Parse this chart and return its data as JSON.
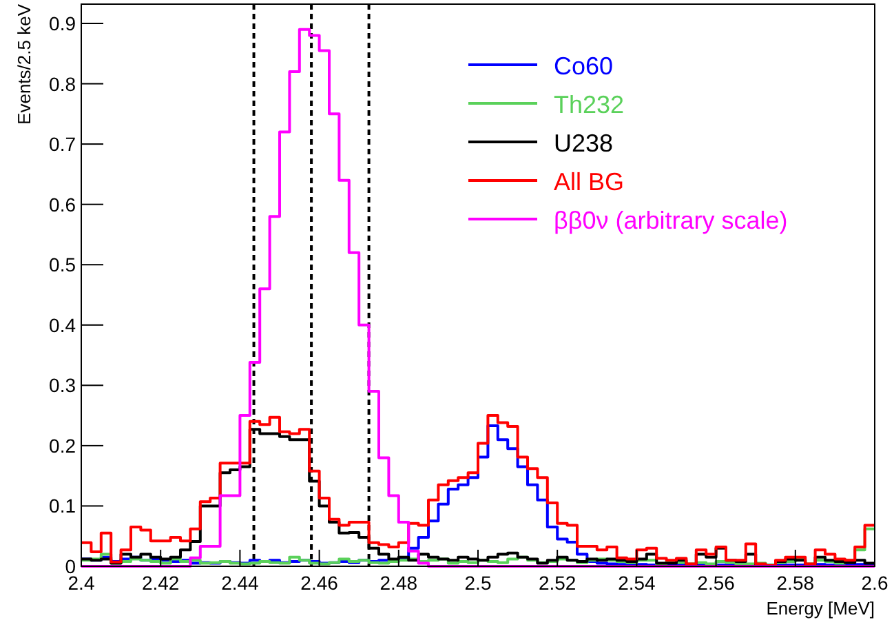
{
  "chart_data": {
    "type": "histogram",
    "xlabel": "Energy [MeV]",
    "ylabel": "Events/2.5 keV",
    "bins": [
      2.4,
      2.4025,
      2.405,
      2.4075,
      2.41,
      2.4125,
      2.415,
      2.4175,
      2.42,
      2.4225,
      2.425,
      2.4275,
      2.43,
      2.4325,
      2.435,
      2.4375,
      2.44,
      2.4425,
      2.445,
      2.4475,
      2.45,
      2.4525,
      2.455,
      2.4575,
      2.46,
      2.4625,
      2.465,
      2.4675,
      2.47,
      2.4725,
      2.475,
      2.4775,
      2.48,
      2.4825,
      2.485,
      2.4875,
      2.49,
      2.4925,
      2.495,
      2.4975,
      2.5,
      2.5025,
      2.505,
      2.5075,
      2.51,
      2.5125,
      2.515,
      2.5175,
      2.52,
      2.5225,
      2.525,
      2.5275,
      2.53,
      2.5325,
      2.535,
      2.5375,
      2.54,
      2.5425,
      2.545,
      2.5475,
      2.55,
      2.5525,
      2.555,
      2.5575,
      2.56,
      2.5625,
      2.565,
      2.5675,
      2.57,
      2.5725,
      2.575,
      2.5775,
      2.58,
      2.5825,
      2.585,
      2.5875,
      2.59,
      2.5925,
      2.595,
      2.5975,
      2.6
    ],
    "series": [
      {
        "name": "Co60",
        "color": "#0000ff",
        "values": [
          0.012,
          0.01,
          0.015,
          0.008,
          0.012,
          0.015,
          0.01,
          0.012,
          0.01,
          0.008,
          0.01,
          0.005,
          0.006,
          0.005,
          0.008,
          0.006,
          0.005,
          0.01,
          0.008,
          0.01,
          0.006,
          0.008,
          0.01,
          0.008,
          0.005,
          0.006,
          0.008,
          0.006,
          0.01,
          0.008,
          0.01,
          0.008,
          0.012,
          0.03,
          0.048,
          0.075,
          0.103,
          0.128,
          0.135,
          0.147,
          0.181,
          0.233,
          0.21,
          0.195,
          0.165,
          0.135,
          0.11,
          0.065,
          0.045,
          0.04,
          0.02,
          0.008,
          0.005,
          0.004,
          0.003,
          0.003,
          0.003,
          0.002,
          0.003,
          0.002,
          0.003,
          0.002,
          0.002,
          0.003,
          0.002,
          0.002,
          0.003,
          0.002,
          0.002,
          0.002,
          0.003,
          0.002,
          0.002,
          0.002,
          0.003,
          0.002,
          0.002,
          0.002,
          0.003,
          0.002
        ]
      },
      {
        "name": "Th232",
        "color": "#5ad15a",
        "values": [
          0.01,
          0.012,
          0.02,
          0.005,
          0.008,
          0.012,
          0.01,
          0.008,
          0.005,
          0.012,
          0.008,
          0.01,
          0.005,
          0.006,
          0.008,
          0.005,
          0.004,
          0.005,
          0.008,
          0.006,
          0.005,
          0.015,
          0.01,
          0.005,
          0.004,
          0.006,
          0.012,
          0.008,
          0.01,
          0.006,
          0.005,
          0.008,
          0.01,
          0.012,
          0.008,
          0.01,
          0.012,
          0.005,
          0.008,
          0.006,
          0.01,
          0.008,
          0.006,
          0.012,
          0.015,
          0.01,
          0.006,
          0.008,
          0.012,
          0.01,
          0.006,
          0.01,
          0.012,
          0.01,
          0.008,
          0.006,
          0.01,
          0.01,
          0.004,
          0.008,
          0.006,
          0.004,
          0.006,
          0.004,
          0.008,
          0.006,
          0.003,
          0.004,
          0.005,
          0.002,
          0.006,
          0.008,
          0.012,
          0.004,
          0.01,
          0.008,
          0.005,
          0.01,
          0.027,
          0.062
        ]
      },
      {
        "name": "U238",
        "color": "#000000",
        "values": [
          0.012,
          0.01,
          0.012,
          0.005,
          0.02,
          0.015,
          0.02,
          0.015,
          0.012,
          0.015,
          0.027,
          0.041,
          0.1,
          0.1,
          0.155,
          0.16,
          0.165,
          0.227,
          0.22,
          0.22,
          0.215,
          0.21,
          0.21,
          0.141,
          0.1,
          0.073,
          0.055,
          0.056,
          0.048,
          0.03,
          0.02,
          0.012,
          0.015,
          0.01,
          0.02,
          0.015,
          0.012,
          0.01,
          0.015,
          0.012,
          0.01,
          0.015,
          0.02,
          0.022,
          0.015,
          0.012,
          0.005,
          0.01,
          0.015,
          0.01,
          0.008,
          0.012,
          0.01,
          0.012,
          0.01,
          0.008,
          0.012,
          0.02,
          0.005,
          0.005,
          0.01,
          0.003,
          0.02,
          0.015,
          0.03,
          0.01,
          0.008,
          0.02,
          0.002,
          0.001,
          0.008,
          0.012,
          0.01,
          0.003,
          0.015,
          0.01,
          0.008,
          0.006,
          0.01,
          0.005
        ]
      },
      {
        "name": "All BG",
        "color": "#ff0000",
        "values": [
          0.039,
          0.024,
          0.055,
          0.007,
          0.027,
          0.065,
          0.06,
          0.042,
          0.042,
          0.048,
          0.042,
          0.062,
          0.107,
          0.113,
          0.171,
          0.171,
          0.171,
          0.24,
          0.235,
          0.247,
          0.223,
          0.22,
          0.227,
          0.158,
          0.113,
          0.078,
          0.068,
          0.073,
          0.073,
          0.039,
          0.036,
          0.032,
          0.039,
          0.071,
          0.068,
          0.11,
          0.135,
          0.142,
          0.147,
          0.155,
          0.204,
          0.25,
          0.238,
          0.232,
          0.181,
          0.162,
          0.147,
          0.105,
          0.071,
          0.068,
          0.033,
          0.033,
          0.027,
          0.032,
          0.014,
          0.012,
          0.027,
          0.03,
          0.013,
          0.01,
          0.013,
          0.004,
          0.027,
          0.02,
          0.032,
          0.01,
          0.01,
          0.037,
          0.004,
          0.001,
          0.01,
          0.015,
          0.015,
          0.004,
          0.027,
          0.02,
          0.012,
          0.01,
          0.032,
          0.068
        ]
      },
      {
        "name": "ββ0ν (arbitrary scale)",
        "color": "#ff00ff",
        "values": [
          0,
          0,
          0,
          0,
          0,
          0,
          0,
          0,
          0,
          0,
          0,
          0.014,
          0.033,
          0.033,
          0.117,
          0.117,
          0.25,
          0.338,
          0.46,
          0.58,
          0.72,
          0.82,
          0.89,
          0.88,
          0.855,
          0.75,
          0.64,
          0.52,
          0.4,
          0.29,
          0.18,
          0.117,
          0.073,
          0.025,
          0.005,
          0,
          0,
          0,
          0,
          0,
          0,
          0,
          0,
          0,
          0,
          0,
          0,
          0,
          0,
          0,
          0,
          0,
          0,
          0,
          0,
          0,
          0,
          0,
          0,
          0,
          0,
          0,
          0,
          0,
          0,
          0,
          0,
          0,
          0,
          0,
          0,
          0,
          0,
          0,
          0,
          0,
          0,
          0,
          0,
          0
        ]
      }
    ],
    "xlim": [
      2.4,
      2.6
    ],
    "ylim": [
      0,
      0.932
    ],
    "xticks": [
      {
        "value": 2.4,
        "label": "2.4"
      },
      2.42,
      2.44,
      2.46,
      2.48,
      {
        "value": 2.5,
        "label": "2.5"
      },
      2.52,
      2.54,
      2.56,
      2.58,
      {
        "value": 2.6,
        "label": "2.6"
      }
    ],
    "yticks": [
      0,
      0.1,
      0.2,
      0.3,
      0.4,
      0.5,
      0.6,
      0.7,
      0.8,
      0.9
    ],
    "ref_lines": [
      {
        "axis": "x",
        "value": 2.4435,
        "color": "#000000",
        "line_style": "dashed"
      },
      {
        "axis": "x",
        "value": 2.458,
        "color": "#000000",
        "line_style": "dashed"
      },
      {
        "axis": "x",
        "value": 2.4725,
        "color": "#000000",
        "line_style": "dashed"
      }
    ],
    "legend": "top right",
    "grid": false,
    "marker": "none",
    "line_style": "solid"
  }
}
